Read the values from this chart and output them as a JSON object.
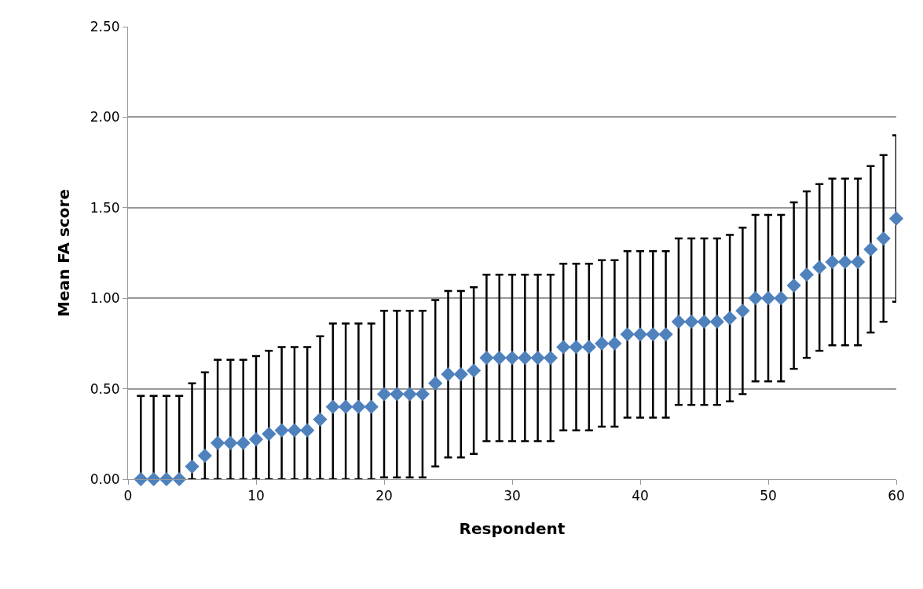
{
  "chart_data": {
    "type": "scatter",
    "xlabel": "Respondent",
    "ylabel": "Mean FA score",
    "x": [
      1,
      2,
      3,
      4,
      5,
      6,
      7,
      8,
      9,
      10,
      11,
      12,
      13,
      14,
      15,
      16,
      17,
      18,
      19,
      20,
      21,
      22,
      23,
      24,
      25,
      26,
      27,
      28,
      29,
      30,
      31,
      32,
      33,
      34,
      35,
      36,
      37,
      38,
      39,
      40,
      41,
      42,
      43,
      44,
      45,
      46,
      47,
      48,
      49,
      50,
      51,
      52,
      53,
      54,
      55,
      56,
      57,
      58,
      59,
      60
    ],
    "values": [
      0,
      0,
      0,
      0,
      0.07,
      0.13,
      0.2,
      0.2,
      0.2,
      0.22,
      0.25,
      0.27,
      0.27,
      0.27,
      0.33,
      0.4,
      0.4,
      0.4,
      0.4,
      0.47,
      0.47,
      0.47,
      0.47,
      0.53,
      0.58,
      0.58,
      0.6,
      0.67,
      0.67,
      0.67,
      0.67,
      0.67,
      0.67,
      0.73,
      0.73,
      0.73,
      0.75,
      0.75,
      0.8,
      0.8,
      0.8,
      0.8,
      0.87,
      0.87,
      0.87,
      0.87,
      0.89,
      0.93,
      1.0,
      1.0,
      1.0,
      1.07,
      1.13,
      1.17,
      1.2,
      1.2,
      1.2,
      1.27,
      1.33,
      1.44
    ],
    "errors": [
      [
        0,
        0.46
      ],
      [
        0,
        0.46
      ],
      [
        0,
        0.46
      ],
      [
        0,
        0.46
      ],
      [
        0,
        0.53
      ],
      [
        0,
        0.59
      ],
      [
        0,
        0.66
      ],
      [
        0,
        0.66
      ],
      [
        0,
        0.66
      ],
      [
        0,
        0.68
      ],
      [
        0,
        0.71
      ],
      [
        0,
        0.73
      ],
      [
        0,
        0.73
      ],
      [
        0,
        0.73
      ],
      [
        0,
        0.79
      ],
      [
        0,
        0.86
      ],
      [
        0,
        0.86
      ],
      [
        0,
        0.86
      ],
      [
        0,
        0.86
      ],
      0.46,
      0.46,
      0.46,
      0.46,
      0.46,
      0.46,
      0.46,
      0.46,
      0.46,
      0.46,
      0.46,
      0.46,
      0.46,
      0.46,
      0.46,
      0.46,
      0.46,
      0.46,
      0.46,
      0.46,
      0.46,
      0.46,
      0.46,
      0.46,
      0.46,
      0.46,
      0.46,
      0.46,
      0.46,
      0.46,
      0.46,
      0.46,
      0.46,
      0.46,
      0.46,
      0.46,
      0.46,
      0.46,
      0.46,
      0.46,
      0.46
    ],
    "color": "#4f81bd",
    "marker": "diamond",
    "grid": "y",
    "xlim": [
      0,
      60
    ],
    "xticks": [
      0,
      10,
      20,
      30,
      40,
      50,
      60
    ],
    "ylim": [
      0,
      2.5
    ],
    "yticks": [
      {
        "value": 0,
        "label": "0.00"
      },
      {
        "value": 0.5,
        "label": "0.50"
      },
      {
        "value": 1,
        "label": "1.00"
      },
      {
        "value": 1.5,
        "label": "1.50"
      },
      {
        "value": 2,
        "label": "2.00"
      },
      {
        "value": 2.5,
        "label": "2.50"
      }
    ]
  }
}
